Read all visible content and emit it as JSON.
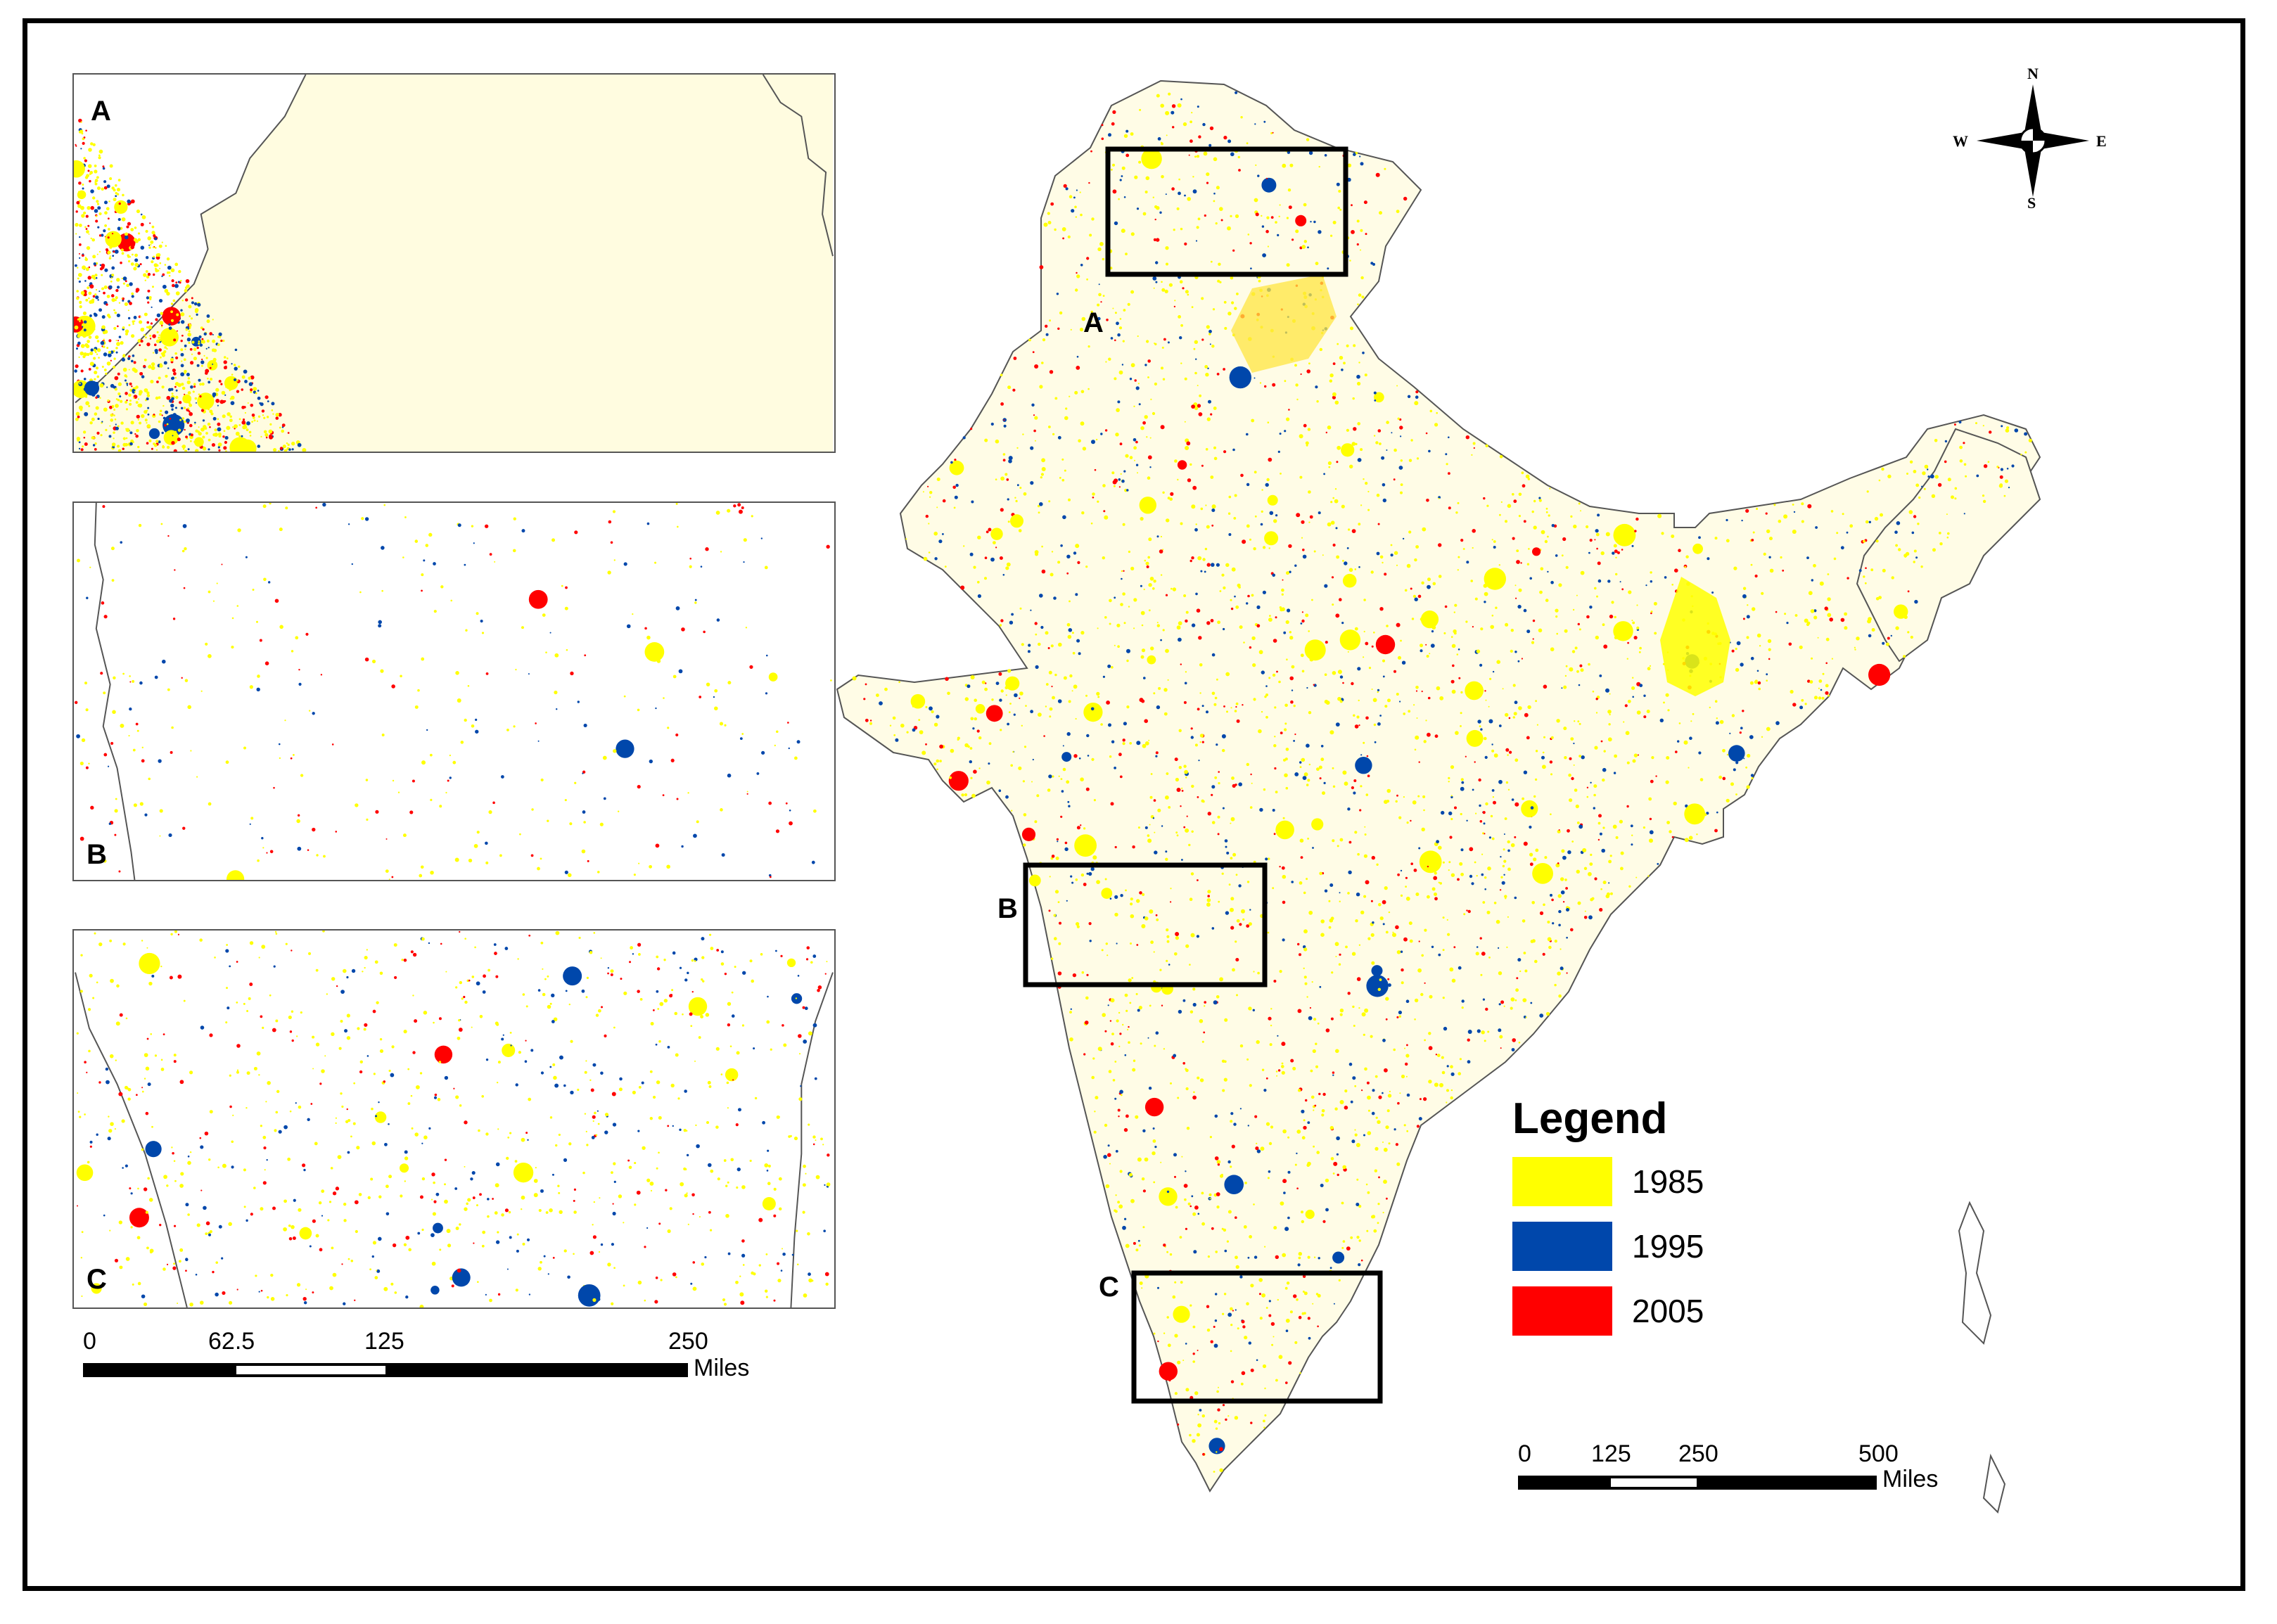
{
  "insets": [
    {
      "id": "A",
      "label": "A"
    },
    {
      "id": "B",
      "label": "B"
    },
    {
      "id": "C",
      "label": "C"
    }
  ],
  "inset_scale": {
    "ticks": [
      "0",
      "62.5",
      "125",
      "250"
    ],
    "unit": "Miles"
  },
  "main_scale": {
    "ticks": [
      "0",
      "125",
      "250",
      "500"
    ],
    "unit": "Miles"
  },
  "legend": {
    "title": "Legend",
    "items": [
      {
        "label": "1985",
        "color": "#ffff00"
      },
      {
        "label": "1995",
        "color": "#0047ab"
      },
      {
        "label": "2005",
        "color": "#ff0000"
      }
    ]
  },
  "boxes": [
    {
      "label": "A"
    },
    {
      "label": "B"
    },
    {
      "label": "C"
    }
  ],
  "compass": {
    "n": "N",
    "s": "S",
    "e": "E",
    "w": "W"
  },
  "colors": {
    "urban_1985": "#ffff00",
    "urban_1995": "#0047ab",
    "urban_2005": "#ff0000",
    "boundary": "#555555",
    "box": "#000000"
  }
}
